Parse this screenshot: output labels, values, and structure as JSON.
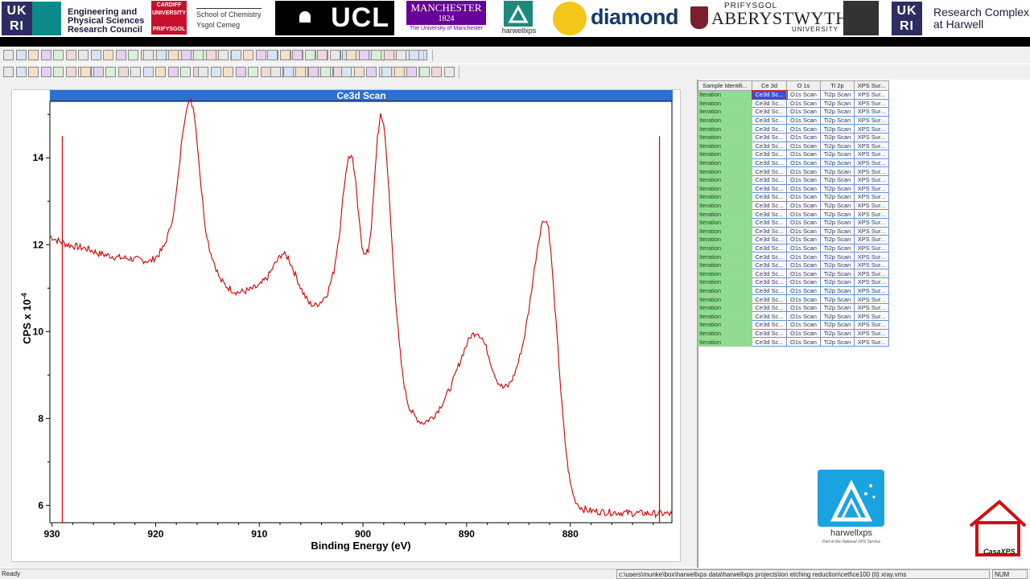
{
  "banner": {
    "ukri_letters": "UK RI",
    "epsrc_line1": "Engineering and",
    "epsrc_line2": "Physical Sciences",
    "epsrc_line3": "Research Council",
    "cardiff_line1": "CARDIFF UNIVERSITY",
    "cardiff_line2": "PRIFYSGOL CAERDYDD",
    "chemistry_line1": "School of Chemistry",
    "chemistry_line2": "Ysgol Cemeg",
    "ucl": "UCL",
    "manchester_line1": "MANCHESTER",
    "manchester_line2": "1824",
    "manchester_sub": "The University of Manchester",
    "harwellxps_small": "harwellxps",
    "diamond": "diamond",
    "aber_prifysgol": "PRIFYSGOL",
    "aber_main": "ABERYSTWYTH",
    "aber_university": "UNIVERSITY",
    "rch_line1": "Research Complex",
    "rch_line2": "at Harwell"
  },
  "graph": {
    "title": "Ce3d Scan"
  },
  "chart_data": {
    "type": "line",
    "title": "Ce3d Scan",
    "xlabel": "Binding Energy (eV)",
    "ylabel": "CPS x 10",
    "ylabel_exponent": "-4",
    "x_reversed": true,
    "xlim": [
      930.2,
      870.2
    ],
    "ylim": [
      5.6,
      15.3
    ],
    "x_ticks": [
      930,
      920,
      910,
      900,
      890,
      880
    ],
    "y_ticks": [
      6,
      8,
      10,
      12,
      14
    ],
    "x_tick_labels": [
      "930",
      "920",
      "910",
      "900",
      "890",
      "880"
    ],
    "y_tick_labels": [
      "6",
      "8",
      "10",
      "12",
      "14"
    ],
    "region_markers_x": [
      929.0,
      871.4
    ],
    "grid": false,
    "series": [
      {
        "color": "#d00000",
        "x": [
          930.2,
          929.5,
          928.5,
          927.5,
          926.5,
          925.5,
          924.5,
          923.5,
          922.5,
          921.5,
          920.5,
          919.8,
          919.2,
          918.7,
          918.2,
          917.8,
          917.4,
          917.0,
          916.6,
          916.3,
          916.0,
          915.6,
          915.2,
          914.8,
          914.3,
          913.8,
          913.2,
          912.6,
          912.0,
          911.0,
          910.0,
          909.2,
          908.5,
          907.8,
          907.2,
          906.5,
          905.8,
          905.2,
          904.6,
          904.0,
          903.4,
          902.8,
          902.2,
          901.8,
          901.4,
          901.0,
          900.7,
          900.4,
          900.1,
          899.8,
          899.5,
          899.2,
          898.9,
          898.6,
          898.3,
          898.0,
          897.7,
          897.4,
          897.1,
          896.8,
          896.5,
          896.2,
          895.9,
          895.6,
          895.3,
          895.0,
          894.6,
          894.2,
          893.8,
          893.2,
          892.6,
          892.0,
          891.4,
          890.8,
          890.2,
          889.6,
          889.0,
          888.5,
          888.0,
          887.5,
          887.0,
          886.5,
          886.0,
          885.5,
          885.0,
          884.5,
          884.0,
          883.6,
          883.2,
          882.8,
          882.4,
          882.1,
          881.8,
          881.5,
          881.2,
          880.9,
          880.6,
          880.3,
          880.0,
          879.6,
          879.2,
          878.8,
          878.2,
          877.6,
          877.0,
          876.0,
          875.0,
          874.0,
          873.0,
          872.0,
          871.0,
          870.2
        ],
        "y": [
          12.2,
          12.1,
          12.0,
          11.95,
          11.9,
          11.8,
          11.75,
          11.7,
          11.68,
          11.65,
          11.62,
          11.75,
          11.95,
          12.3,
          12.8,
          13.6,
          14.6,
          15.2,
          15.3,
          15.1,
          14.4,
          13.3,
          12.4,
          11.9,
          11.55,
          11.2,
          11.05,
          10.95,
          10.9,
          10.95,
          11.05,
          11.25,
          11.55,
          11.8,
          11.7,
          11.3,
          10.9,
          10.65,
          10.6,
          10.7,
          10.9,
          11.4,
          12.4,
          13.4,
          14.05,
          14.0,
          13.4,
          12.6,
          12.0,
          11.75,
          11.85,
          12.4,
          13.4,
          14.5,
          14.95,
          14.8,
          14.0,
          12.8,
          11.6,
          10.6,
          9.7,
          9.05,
          8.6,
          8.3,
          8.15,
          8.05,
          7.95,
          7.9,
          7.95,
          8.05,
          8.25,
          8.5,
          8.8,
          9.2,
          9.6,
          9.9,
          10.0,
          9.85,
          9.55,
          9.15,
          8.85,
          8.7,
          8.75,
          8.95,
          9.3,
          9.8,
          10.5,
          11.2,
          11.9,
          12.45,
          12.6,
          12.4,
          11.6,
          10.6,
          9.6,
          8.6,
          7.7,
          7.0,
          6.5,
          6.15,
          6.0,
          5.92,
          5.88,
          5.86,
          5.85,
          5.84,
          5.83,
          5.82,
          5.82,
          5.81,
          5.81,
          5.8
        ]
      }
    ]
  },
  "table": {
    "headers": [
      "Sample Identifi...",
      "Ce 3d",
      "O 1s",
      "Ti 2p",
      "XPS Sur..."
    ],
    "row_id": "Iteration",
    "cells": [
      "Ce3d Sc...",
      "O1s Scan",
      "Ti2p Scan",
      "XPS Sur..."
    ],
    "row_count": 30,
    "selected_row": 0,
    "selected_col": 1
  },
  "branding": {
    "harwell_text": "harwellxps",
    "harwell_sub": "Part of the National XPS Service",
    "casa_text": "CasaXPS"
  },
  "status": {
    "left": "Ready",
    "path": "c:\\users\\munke\\box\\harwellxps data\\harwellxps projects\\ion etching reduction\\cetl\\ce100 (ti) xray.vms",
    "num": "NUM"
  },
  "colors": {
    "title_bar": "#2f6fd0",
    "curve": "#d00000",
    "table_id_cell": "#90dd90",
    "table_border": "#6a8fd8"
  }
}
